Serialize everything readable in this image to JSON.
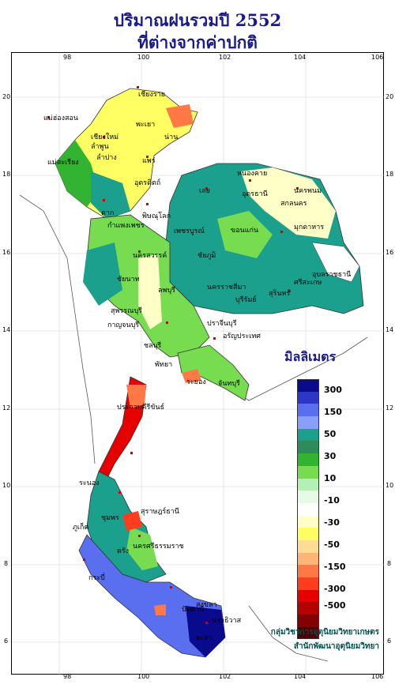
{
  "title": {
    "line1": "ปริมาณฝนรวมปี  2552",
    "line2": "ที่ต่างจากค่าปกติ"
  },
  "axes": {
    "x_ticks": [
      "98",
      "100",
      "102",
      "104",
      "106"
    ],
    "y_ticks": [
      "20",
      "18",
      "16",
      "14",
      "12",
      "10",
      "8",
      "6"
    ]
  },
  "legend": {
    "title": "มิลลิเมตร",
    "labels": [
      "300",
      "150",
      "50",
      "30",
      "10",
      "-10",
      "-30",
      "-50",
      "-150",
      "-300",
      "-500"
    ],
    "colors": [
      "#0a0a8c",
      "#2e36c8",
      "#5a6ef0",
      "#8aa0f8",
      "#1aa08c",
      "#2e8c5a",
      "#32b432",
      "#78dc50",
      "#b4f0b4",
      "#e6fae6",
      "#ffffff",
      "#ffffc8",
      "#ffff64",
      "#ffdc96",
      "#ffb478",
      "#ff7846",
      "#ff3c1e",
      "#e60000",
      "#b40000",
      "#820000",
      "#500000"
    ]
  },
  "credits": {
    "line1": "กลุ่มวิชาการอุตุนิยมวิทยาเกษตร",
    "line2": "สำนักพัฒนาอุตุนิยมวิทยา"
  },
  "places": [
    "เชียงราย",
    "แม่ฮ่องสอน",
    "เชียงใหม่",
    "ลำพูน",
    "พะเยา",
    "น่าน",
    "ลำปาง",
    "แพร่",
    "แม่สะเรียง",
    "อุตรดิตถ์",
    "หนองคาย",
    "นครพนม",
    "เลย",
    "อุดรธานี",
    "สกลนคร",
    "ตาก",
    "พิษณุโลก",
    "มุกดาหาร",
    "กำแพงเพชร",
    "เพชรบูรณ์",
    "ขอนแก่น",
    "นครสวรรค์",
    "ชัยภูมิ",
    "อุบลราชธานี",
    "ชัยนาท",
    "นครราชสีมา",
    "สุรินทร์",
    "ศรีสะเกษ",
    "ลพบุรี",
    "บุรีรัมย์",
    "สุพรรณบุรี",
    "กาญจนบุรี",
    "ปราจีนบุรี",
    "อรัญประเทศ",
    "ชลบุรี",
    "พัทยา",
    "ระยอง",
    "จันทบุรี",
    "ประจวบคีรีขันธ์",
    "ชุมพร",
    "ระนอง",
    "สุราษฎร์ธานี",
    "ภูเก็ต",
    "กระบี่",
    "นครศรีธรรมราช",
    "ตรัง",
    "สงขลา",
    "ปัตตานี",
    "นราธิวาส",
    "ยะลา"
  ]
}
